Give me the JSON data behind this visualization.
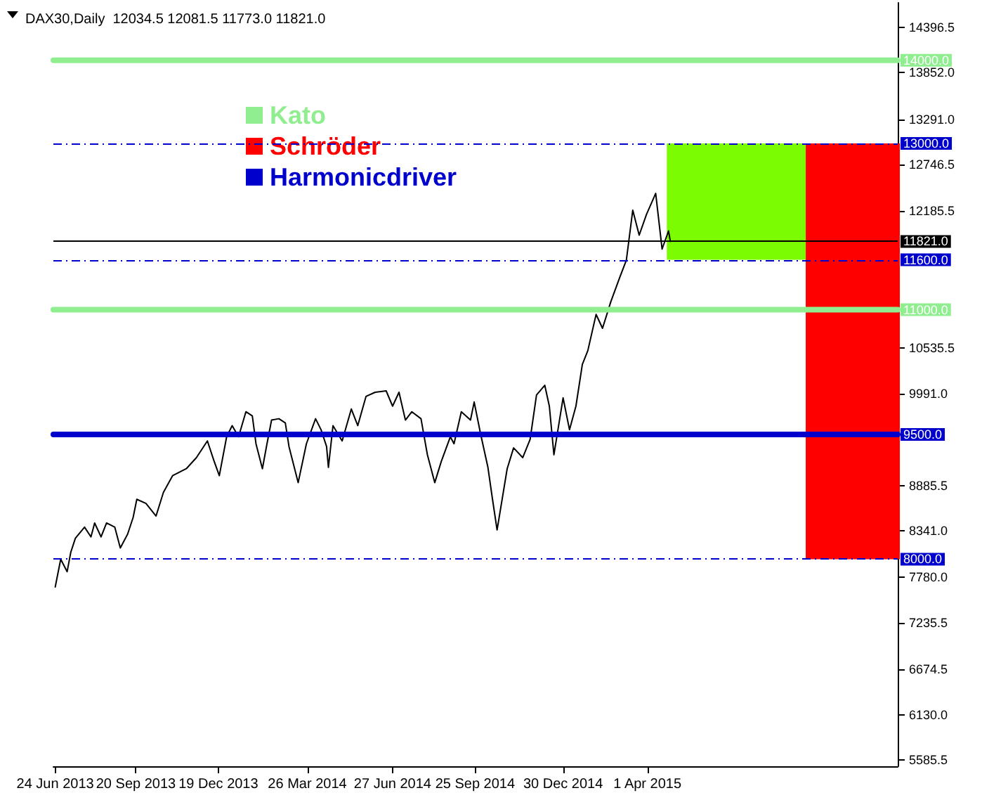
{
  "chart_data": {
    "type": "line",
    "title": "DAX30,Daily  12034.5 12081.5 11773.0 11821.0",
    "xlim": [
      "2013-06-22",
      "2015-12-30"
    ],
    "xticks": [
      {
        "value": "2013-06-24",
        "label": "24 Jun 2013"
      },
      {
        "value": "2013-09-20",
        "label": "20 Sep 2013"
      },
      {
        "value": "2013-12-19",
        "label": "19 Dec 2013"
      },
      {
        "value": "2014-03-26",
        "label": "26 Mar 2014"
      },
      {
        "value": "2014-06-27",
        "label": "27 Jun 2014"
      },
      {
        "value": "2014-09-25",
        "label": "25 Sep 2014"
      },
      {
        "value": "2014-12-30",
        "label": "30 Dec 2014"
      },
      {
        "value": "2015-04-01",
        "label": "1 Apr 2015"
      }
    ],
    "ylim": [
      5510,
      14690
    ],
    "yticks": [
      5585.5,
      {
        "value": 6130,
        "label": "6130.0"
      },
      6674.5,
      7235.5,
      {
        "value": 7780,
        "label": "7780.0"
      },
      {
        "value": 8341,
        "label": "8341.0"
      },
      8885.5,
      {
        "value": 9991,
        "label": "9991.0"
      },
      10535.5,
      12185.5,
      12746.5,
      {
        "value": 13291,
        "label": "13291.0"
      },
      {
        "value": 13852,
        "label": "13852.0"
      },
      14396.5
    ],
    "grid": false,
    "legend": "top left",
    "marker": "none",
    "line_style": "solid",
    "series": [
      {
        "color": "#000000",
        "x": [
          "2013-06-24",
          "2013-06-30",
          "2013-07-07",
          "2013-07-11",
          "2013-07-16",
          "2013-07-26",
          "2013-08-02",
          "2013-08-06",
          "2013-08-13",
          "2013-08-19",
          "2013-08-28",
          "2013-09-03",
          "2013-09-11",
          "2013-09-17",
          "2013-09-21",
          "2013-10-01",
          "2013-10-12",
          "2013-10-20",
          "2013-10-30",
          "2013-11-14",
          "2013-11-25",
          "2013-12-07",
          "2013-12-14",
          "2013-12-20",
          "2013-12-28",
          "2014-01-03",
          "2014-01-10",
          "2014-01-18",
          "2014-01-25",
          "2014-01-29",
          "2014-02-05",
          "2014-02-10",
          "2014-02-15",
          "2014-02-23",
          "2014-03-02",
          "2014-03-06",
          "2014-03-16",
          "2014-03-25",
          "2014-04-04",
          "2014-04-10",
          "2014-04-16",
          "2014-04-18",
          "2014-04-23",
          "2014-05-03",
          "2014-05-13",
          "2014-05-20",
          "2014-05-29",
          "2014-06-08",
          "2014-06-20",
          "2014-06-27",
          "2014-07-04",
          "2014-07-11",
          "2014-07-18",
          "2014-07-28",
          "2014-08-04",
          "2014-08-12",
          "2014-08-19",
          "2014-08-29",
          "2014-09-02",
          "2014-09-10",
          "2014-09-20",
          "2014-09-24",
          "2014-10-01",
          "2014-10-09",
          "2014-10-14",
          "2014-10-19",
          "2014-10-30",
          "2014-11-06",
          "2014-11-16",
          "2014-11-24",
          "2014-12-01",
          "2014-12-10",
          "2014-12-15",
          "2014-12-20",
          "2014-12-30",
          "2015-01-06",
          "2015-01-13",
          "2015-01-20",
          "2015-01-26",
          "2015-02-04",
          "2015-02-11",
          "2015-02-20",
          "2015-03-02",
          "2015-03-09",
          "2015-03-16",
          "2015-03-23",
          "2015-03-31",
          "2015-04-10",
          "2015-04-17",
          "2015-04-24",
          "2015-04-26"
        ],
        "values": [
          7666,
          8000,
          7850,
          8084,
          8252,
          8385,
          8268,
          8435,
          8268,
          8435,
          8385,
          8134,
          8302,
          8502,
          8720,
          8670,
          8519,
          8803,
          9004,
          9088,
          9221,
          9422,
          9188,
          9004,
          9472,
          9606,
          9472,
          9773,
          9723,
          9388,
          9088,
          9388,
          9673,
          9689,
          9639,
          9355,
          8920,
          9388,
          9689,
          9556,
          9355,
          9104,
          9606,
          9422,
          9806,
          9606,
          9957,
          10007,
          10024,
          9840,
          10007,
          9673,
          9773,
          9689,
          9255,
          8920,
          9171,
          9472,
          9388,
          9773,
          9673,
          9890,
          9506,
          9104,
          8720,
          8352,
          9088,
          9338,
          9221,
          9439,
          9974,
          10091,
          9840,
          9255,
          9940,
          9556,
          9840,
          10342,
          10509,
          10943,
          10776,
          11094,
          11395,
          11596,
          12197,
          11896,
          12147,
          12398,
          11729,
          11947,
          11821
        ]
      },
      {
        "name": "Kato",
        "color": "#90ee90",
        "x": [
          "2013-06-22",
          "2015-12-30"
        ],
        "values": [
          14000,
          14000
        ],
        "value_labels": [
          null,
          "14000.0"
        ]
      },
      {
        "color": "#90ee90",
        "x": [
          "2013-06-22",
          "2015-12-30"
        ],
        "values": [
          11000,
          11000
        ],
        "value_labels": [
          null,
          "11000.0"
        ]
      },
      {
        "type": "bar",
        "color": "#7cfc00",
        "x": [
          "2015-07-07"
        ],
        "base": [
          11600
        ],
        "values": [
          1400
        ]
      },
      {
        "type": "bar",
        "name": "Schröder",
        "color": "#ff0000",
        "x": [
          "2015-11-11"
        ],
        "base": [
          8000
        ],
        "values": [
          5000
        ]
      },
      {
        "name": "Harmonicdriver",
        "color": "#0000cc",
        "x": [
          "2013-06-22",
          "2015-12-30"
        ],
        "values": [
          9500,
          9500
        ],
        "value_labels": [
          null,
          "9500.0"
        ]
      }
    ],
    "ref_lines": [
      {
        "axis": "y",
        "value": 13000,
        "label": "13000.0",
        "color": "#0000cc",
        "line_style": "dashed"
      },
      {
        "axis": "y",
        "value": 11821,
        "label": "11821.0",
        "color": "#000000",
        "line_style": "solid"
      },
      {
        "axis": "y",
        "value": 11600,
        "label": "11600.0",
        "color": "#0000cc",
        "line_style": "dashed"
      },
      {
        "axis": "y",
        "value": 8000,
        "label": "8000.0",
        "color": "#0000cc",
        "line_style": "dashed"
      }
    ]
  }
}
